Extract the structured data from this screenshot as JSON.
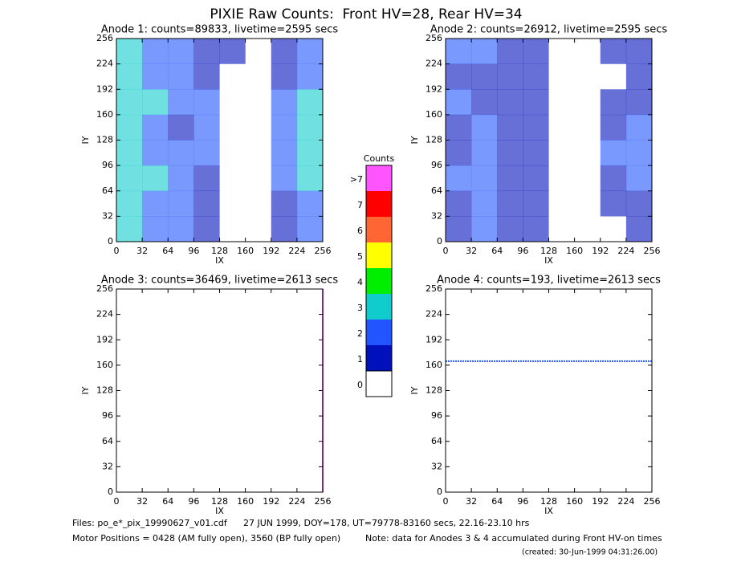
{
  "page": {
    "title": "PIXIE Raw Counts:  Front HV=28, Rear HV=34",
    "footer": [
      "Files: po_e*_pix_19990627_v01.cdf",
      "27 JUN 1999, DOY=178, UT=79778-83160 secs, 22.16-23.10 hrs",
      "Motor Positions = 0428 (AM fully open), 3560 (BP fully open)",
      "Note: data for Anodes 3 & 4 accumulated during Front HV-on times",
      "(created: 30-Jun-1999 04:31:26.00)"
    ]
  },
  "colorbar": {
    "title": "Counts",
    "levels": [
      {
        "label": ">7",
        "color": "#ff55ff"
      },
      {
        "label": 7,
        "color": "#ff0000"
      },
      {
        "label": 6,
        "color": "#ff6633"
      },
      {
        "label": 5,
        "color": "#ffff00"
      },
      {
        "label": 4,
        "color": "#00ee00"
      },
      {
        "label": 3,
        "color": "#11cccc"
      },
      {
        "label": 2,
        "color": "#2255ff"
      },
      {
        "label": 1,
        "color": "#0011bb"
      },
      {
        "label": 0,
        "color": "#ffffff"
      }
    ]
  },
  "chart_data": [
    {
      "type": "heatmap",
      "title": "Anode 1: counts=89833, livetime=2595 secs",
      "xlabel": "IX",
      "ylabel": "IY",
      "xlim": [
        0,
        256
      ],
      "ylim": [
        0,
        256
      ],
      "xticks": [
        0,
        32,
        64,
        96,
        128,
        160,
        192,
        224,
        256
      ],
      "yticks": [
        0,
        32,
        64,
        96,
        128,
        160,
        192,
        224,
        256
      ],
      "grid": [
        [
          3,
          2,
          2,
          1,
          1,
          0,
          1,
          2
        ],
        [
          3,
          2,
          2,
          1,
          0,
          0,
          1,
          2
        ],
        [
          3,
          3,
          2,
          2,
          0,
          0,
          2,
          3
        ],
        [
          3,
          2,
          1,
          2,
          0,
          0,
          2,
          3
        ],
        [
          3,
          2,
          2,
          2,
          0,
          0,
          2,
          3
        ],
        [
          3,
          3,
          2,
          1,
          0,
          0,
          2,
          3
        ],
        [
          3,
          2,
          2,
          1,
          0,
          0,
          1,
          2
        ],
        [
          3,
          2,
          2,
          1,
          0,
          0,
          1,
          2
        ]
      ]
    },
    {
      "type": "heatmap",
      "title": "Anode 2: counts=26912, livetime=2595 secs",
      "xlabel": "IX",
      "ylabel": "IY",
      "xlim": [
        0,
        256
      ],
      "ylim": [
        0,
        256
      ],
      "xticks": [
        0,
        32,
        64,
        96,
        128,
        160,
        192,
        224,
        256
      ],
      "yticks": [
        0,
        32,
        64,
        96,
        128,
        160,
        192,
        224,
        256
      ],
      "grid": [
        [
          2,
          2,
          1,
          1,
          0,
          0,
          1,
          1
        ],
        [
          1,
          1,
          1,
          1,
          0,
          0,
          0,
          1
        ],
        [
          2,
          1,
          1,
          1,
          0,
          0,
          1,
          1
        ],
        [
          1,
          2,
          1,
          1,
          0,
          0,
          1,
          2
        ],
        [
          1,
          2,
          1,
          1,
          0,
          0,
          2,
          2
        ],
        [
          2,
          2,
          1,
          1,
          0,
          0,
          1,
          2
        ],
        [
          1,
          2,
          1,
          1,
          0,
          0,
          1,
          1
        ],
        [
          1,
          2,
          1,
          1,
          0,
          0,
          0,
          1
        ]
      ]
    },
    {
      "type": "heatmap",
      "title": "Anode 3: counts=36469, livetime=2613 secs",
      "xlabel": "IX",
      "ylabel": "IY",
      "xlim": [
        0,
        256
      ],
      "ylim": [
        0,
        256
      ],
      "xticks": [
        0,
        32,
        64,
        96,
        128,
        160,
        192,
        224,
        256
      ],
      "yticks": [
        0,
        32,
        64,
        96,
        128,
        160,
        192,
        224,
        256
      ],
      "lines": [
        {
          "ix": 256,
          "color": "#ff55ff"
        }
      ]
    },
    {
      "type": "heatmap",
      "title": "Anode 4: counts=193, livetime=2613 secs",
      "xlabel": "IX",
      "ylabel": "IY",
      "xlim": [
        0,
        256
      ],
      "ylim": [
        0,
        256
      ],
      "xticks": [
        0,
        32,
        64,
        96,
        128,
        160,
        192,
        224,
        256
      ],
      "yticks": [
        0,
        32,
        64,
        96,
        128,
        160,
        192,
        224,
        256
      ],
      "lines": [
        {
          "iy": 165,
          "color": "#2255ff"
        }
      ]
    }
  ]
}
